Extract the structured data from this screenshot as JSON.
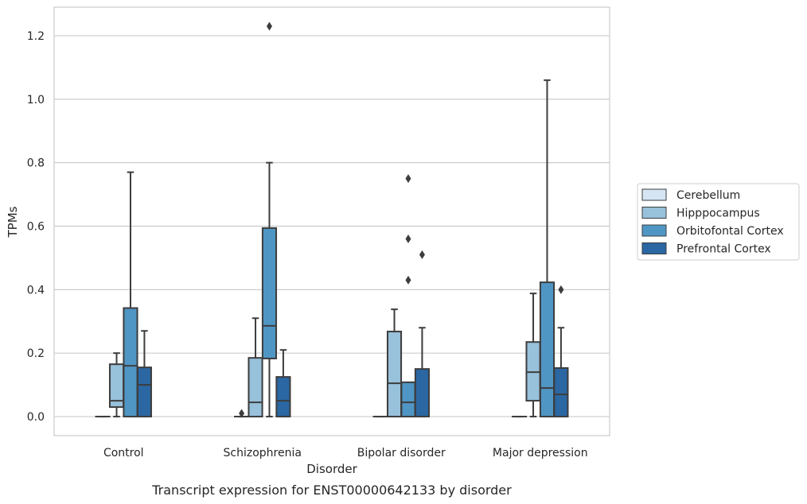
{
  "chart_data": {
    "type": "box",
    "caption": "Transcript expression for ENST00000642133 by disorder",
    "xlabel": "Disorder",
    "ylabel": "TPMs",
    "ylim": [
      -0.06,
      1.29
    ],
    "yticks": [
      "0.0",
      "0.2",
      "0.4",
      "0.6",
      "0.8",
      "1.0",
      "1.2"
    ],
    "grid": "horizontal",
    "legend_position": "right",
    "categories": [
      "Control",
      "Schizophrenia",
      "Bipolar disorder",
      "Major depression"
    ],
    "series": [
      {
        "name": "Cerebellum",
        "color": "#d5e5f3",
        "boxes": [
          {
            "whislo": 0,
            "q1": 0,
            "med": 0,
            "q3": 0,
            "whishi": 0,
            "fliers": []
          },
          {
            "whislo": 0,
            "q1": 0,
            "med": 0,
            "q3": 0,
            "whishi": 0,
            "fliers": [
              0.01
            ]
          },
          {
            "whislo": 0,
            "q1": 0,
            "med": 0,
            "q3": 0,
            "whishi": 0,
            "fliers": []
          },
          {
            "whislo": 0,
            "q1": 0,
            "med": 0,
            "q3": 0,
            "whishi": 0,
            "fliers": []
          }
        ]
      },
      {
        "name": "Hipppocampus",
        "color": "#98c1db",
        "boxes": [
          {
            "whislo": 0,
            "q1": 0.03,
            "med": 0.05,
            "q3": 0.165,
            "whishi": 0.2,
            "fliers": []
          },
          {
            "whislo": 0,
            "q1": 0,
            "med": 0.045,
            "q3": 0.185,
            "whishi": 0.31,
            "fliers": []
          },
          {
            "whislo": 0,
            "q1": 0,
            "med": 0.105,
            "q3": 0.268,
            "whishi": 0.338,
            "fliers": []
          },
          {
            "whislo": 0,
            "q1": 0.05,
            "med": 0.14,
            "q3": 0.235,
            "whishi": 0.388,
            "fliers": []
          }
        ]
      },
      {
        "name": "Orbitofontal Cortex",
        "color": "#5096c5",
        "boxes": [
          {
            "whislo": 0,
            "q1": 0,
            "med": 0.16,
            "q3": 0.342,
            "whishi": 0.77,
            "fliers": []
          },
          {
            "whislo": 0,
            "q1": 0.183,
            "med": 0.286,
            "q3": 0.594,
            "whishi": 0.8,
            "fliers": [
              1.23
            ]
          },
          {
            "whislo": 0,
            "q1": 0,
            "med": 0.045,
            "q3": 0.108,
            "whishi": 0.108,
            "fliers": [
              0.43,
              0.56,
              0.75
            ]
          },
          {
            "whislo": 0,
            "q1": 0,
            "med": 0.09,
            "q3": 0.423,
            "whishi": 1.06,
            "fliers": []
          }
        ]
      },
      {
        "name": "Prefrontal Cortex",
        "color": "#2a67a3",
        "boxes": [
          {
            "whislo": 0,
            "q1": 0,
            "med": 0.1,
            "q3": 0.155,
            "whishi": 0.27,
            "fliers": []
          },
          {
            "whislo": 0,
            "q1": 0,
            "med": 0.05,
            "q3": 0.125,
            "whishi": 0.21,
            "fliers": []
          },
          {
            "whislo": 0,
            "q1": 0,
            "med": 0,
            "q3": 0.15,
            "whishi": 0.28,
            "fliers": [
              0.51
            ]
          },
          {
            "whislo": 0,
            "q1": 0,
            "med": 0.07,
            "q3": 0.153,
            "whishi": 0.28,
            "fliers": [
              0.4
            ]
          }
        ]
      }
    ]
  }
}
